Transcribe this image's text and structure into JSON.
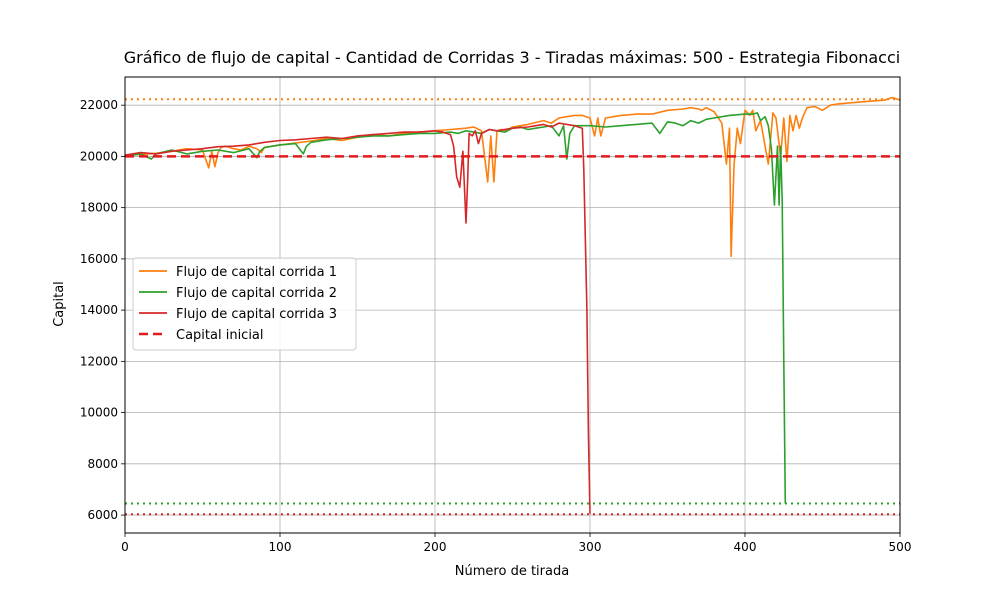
{
  "chart_data": {
    "type": "line",
    "title": "Gráfico de flujo de capital - Cantidad de Corridas 3 - Tiradas máximas: 500 - Estrategia Fibonacci",
    "xlabel": "Número de tirada",
    "ylabel": "Capital",
    "xlim": [
      0,
      500
    ],
    "ylim": [
      5300,
      23100
    ],
    "grid": true,
    "legend_position": "center-left",
    "x_ticks": [
      0,
      100,
      200,
      300,
      400,
      500
    ],
    "y_ticks": [
      6000,
      8000,
      10000,
      12000,
      14000,
      16000,
      18000,
      20000,
      22000
    ],
    "series": [
      {
        "name": "Flujo de capital corrida 1",
        "color": "#ff7f0e",
        "style": "solid",
        "x": [
          0,
          10,
          20,
          30,
          40,
          50,
          54,
          56,
          58,
          60,
          62,
          65,
          70,
          75,
          80,
          85,
          88,
          90,
          100,
          110,
          120,
          130,
          140,
          150,
          160,
          170,
          180,
          190,
          200,
          210,
          220,
          225,
          230,
          234,
          236,
          238,
          240,
          243,
          246,
          250,
          260,
          270,
          275,
          280,
          285,
          290,
          295,
          300,
          303,
          305,
          307,
          310,
          320,
          330,
          340,
          350,
          360,
          365,
          370,
          372,
          375,
          380,
          385,
          388,
          390,
          391,
          393,
          395,
          397,
          400,
          403,
          405,
          407,
          410,
          413,
          415,
          418,
          420,
          423,
          425,
          427,
          429,
          431,
          433,
          435,
          437,
          440,
          445,
          450,
          455,
          460,
          470,
          480,
          490,
          495,
          500
        ],
        "y": [
          20050,
          20080,
          20120,
          20200,
          20300,
          20250,
          19550,
          20200,
          19600,
          20150,
          20350,
          20400,
          20300,
          20250,
          20400,
          20300,
          20150,
          20350,
          20450,
          20520,
          20600,
          20700,
          20620,
          20750,
          20850,
          20800,
          20900,
          20950,
          21000,
          21050,
          21100,
          21150,
          21000,
          19000,
          20800,
          19000,
          21000,
          21050,
          21000,
          21150,
          21250,
          21400,
          21300,
          21500,
          21550,
          21600,
          21600,
          21500,
          20800,
          21500,
          20800,
          21500,
          21600,
          21650,
          21650,
          21800,
          21850,
          21900,
          21850,
          21800,
          21900,
          21750,
          21300,
          19700,
          21100,
          16100,
          19700,
          21100,
          20500,
          21800,
          21600,
          21800,
          21000,
          21400,
          20400,
          19700,
          21700,
          21500,
          20000,
          21500,
          19800,
          21600,
          21000,
          21600,
          21100,
          21500,
          21900,
          21950,
          21800,
          22000,
          22050,
          22100,
          22150,
          22200,
          22300,
          22200
        ]
      },
      {
        "name": "Flujo de capital corrida 2",
        "color": "#2ca02c",
        "style": "solid",
        "x": [
          0,
          10,
          17,
          20,
          30,
          40,
          50,
          60,
          70,
          80,
          85,
          87,
          90,
          100,
          110,
          115,
          117,
          120,
          130,
          140,
          150,
          160,
          170,
          180,
          190,
          200,
          210,
          215,
          220,
          225,
          230,
          235,
          240,
          245,
          250,
          255,
          260,
          265,
          270,
          275,
          280,
          283,
          285,
          287,
          290,
          300,
          310,
          320,
          330,
          340,
          345,
          350,
          355,
          360,
          365,
          370,
          375,
          380,
          390,
          400,
          405,
          408,
          410,
          413,
          415,
          417,
          419,
          421,
          422,
          423,
          424,
          425,
          426
        ],
        "y": [
          20000,
          20100,
          19900,
          20100,
          20250,
          20100,
          20200,
          20250,
          20150,
          20300,
          19950,
          20200,
          20350,
          20450,
          20500,
          20100,
          20400,
          20550,
          20650,
          20700,
          20750,
          20800,
          20800,
          20850,
          20900,
          20900,
          20950,
          20900,
          21000,
          20950,
          20900,
          21050,
          21000,
          20950,
          21100,
          21150,
          21050,
          21100,
          21150,
          21200,
          20800,
          21200,
          19900,
          20900,
          21200,
          21200,
          21150,
          21200,
          21250,
          21300,
          20900,
          21350,
          21300,
          21200,
          21400,
          21300,
          21450,
          21500,
          21600,
          21650,
          21650,
          21700,
          21400,
          21550,
          21200,
          20300,
          18100,
          20400,
          18100,
          20400,
          18300,
          12000,
          6450
        ]
      },
      {
        "name": "Flujo de capital corrida 3",
        "color": "#d62728",
        "style": "solid",
        "x": [
          0,
          10,
          20,
          30,
          40,
          50,
          60,
          70,
          80,
          90,
          100,
          110,
          120,
          130,
          140,
          150,
          160,
          170,
          180,
          190,
          200,
          205,
          210,
          212,
          214,
          216,
          218,
          220,
          221,
          222,
          224,
          226,
          228,
          230,
          235,
          240,
          250,
          260,
          265,
          270,
          275,
          280,
          285,
          290,
          295,
          296,
          298,
          299,
          300
        ],
        "y": [
          20050,
          20150,
          20100,
          20200,
          20250,
          20300,
          20380,
          20400,
          20450,
          20550,
          20620,
          20650,
          20700,
          20750,
          20700,
          20800,
          20850,
          20900,
          20950,
          20950,
          21000,
          20950,
          20850,
          20400,
          19200,
          18800,
          20200,
          17400,
          19000,
          20900,
          20800,
          21000,
          20500,
          20900,
          21050,
          21000,
          21100,
          21150,
          21200,
          21250,
          21150,
          21300,
          21250,
          21200,
          21100,
          19500,
          14000,
          9000,
          6050
        ]
      },
      {
        "name": "Capital inicial",
        "color": "#e31a1c",
        "style": "dashed",
        "x": [
          0,
          500
        ],
        "y": [
          20000,
          20000
        ]
      }
    ],
    "reference_lines": [
      {
        "y": 22230,
        "color": "#ff7f0e",
        "style": "dotted"
      },
      {
        "y": 6450,
        "color": "#2ca02c",
        "style": "dotted"
      },
      {
        "y": 6030,
        "color": "#d62728",
        "style": "dotted"
      }
    ]
  }
}
